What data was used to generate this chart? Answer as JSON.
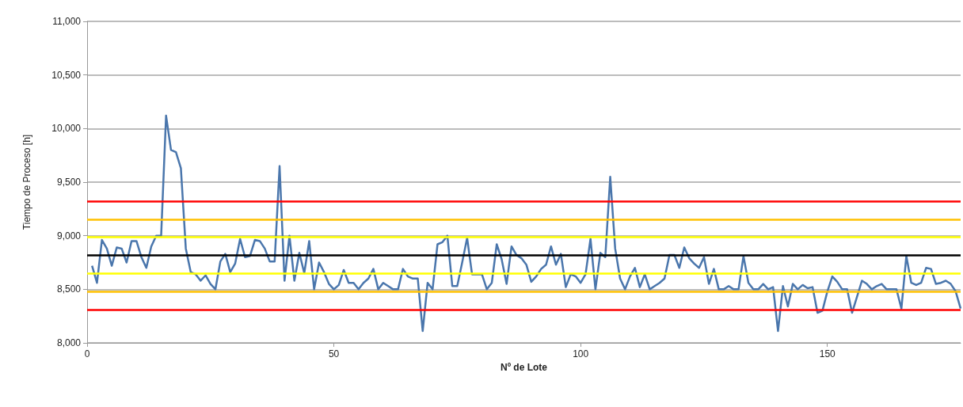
{
  "chart_data": {
    "type": "line",
    "xlabel": "Nº de Lote",
    "ylabel": "Tiempo de Proceso [h]",
    "x": [
      1,
      2,
      3,
      4,
      5,
      6,
      7,
      8,
      9,
      10,
      11,
      12,
      13,
      14,
      15,
      16,
      17,
      18,
      19,
      20,
      21,
      22,
      23,
      24,
      25,
      26,
      27,
      28,
      29,
      30,
      31,
      32,
      33,
      34,
      35,
      36,
      37,
      38,
      39,
      40,
      41,
      42,
      43,
      44,
      45,
      46,
      47,
      48,
      49,
      50,
      51,
      52,
      53,
      54,
      55,
      56,
      57,
      58,
      59,
      60,
      61,
      62,
      63,
      64,
      65,
      66,
      67,
      68,
      69,
      70,
      71,
      72,
      73,
      74,
      75,
      76,
      77,
      78,
      79,
      80,
      81,
      82,
      83,
      84,
      85,
      86,
      87,
      88,
      89,
      90,
      91,
      92,
      93,
      94,
      95,
      96,
      97,
      98,
      99,
      100,
      101,
      102,
      103,
      104,
      105,
      106,
      107,
      108,
      109,
      110,
      111,
      112,
      113,
      114,
      115,
      116,
      117,
      118,
      119,
      120,
      121,
      122,
      123,
      124,
      125,
      126,
      127,
      128,
      129,
      130,
      131,
      132,
      133,
      134,
      135,
      136,
      137,
      138,
      139,
      140,
      141,
      142,
      143,
      144,
      145,
      146,
      147,
      148,
      149,
      150,
      151,
      152,
      153,
      154,
      155,
      156,
      157,
      158,
      159,
      160,
      161,
      162,
      163,
      164,
      165,
      166,
      167,
      168,
      169,
      170,
      171,
      172,
      173,
      174,
      175,
      176,
      177
    ],
    "series": [
      {
        "color": "#4a76ac",
        "values": [
          8720,
          8560,
          8960,
          8880,
          8720,
          8890,
          8880,
          8750,
          8950,
          8950,
          8800,
          8700,
          8900,
          9000,
          9000,
          10120,
          9800,
          9780,
          9630,
          8880,
          8660,
          8640,
          8580,
          8630,
          8550,
          8500,
          8760,
          8830,
          8660,
          8740,
          8970,
          8800,
          8810,
          8960,
          8950,
          8880,
          8760,
          8760,
          9650,
          8580,
          9000,
          8580,
          8840,
          8650,
          8950,
          8500,
          8750,
          8660,
          8550,
          8500,
          8540,
          8680,
          8560,
          8560,
          8500,
          8560,
          8600,
          8690,
          8500,
          8560,
          8530,
          8500,
          8500,
          8690,
          8620,
          8600,
          8600,
          8110,
          8560,
          8500,
          8920,
          8940,
          9000,
          8530,
          8530,
          8750,
          8980,
          8640,
          8640,
          8640,
          8500,
          8560,
          8920,
          8780,
          8550,
          8900,
          8820,
          8790,
          8730,
          8570,
          8620,
          8690,
          8730,
          8900,
          8730,
          8830,
          8520,
          8640,
          8620,
          8560,
          8640,
          8970,
          8500,
          8840,
          8800,
          9550,
          8880,
          8600,
          8500,
          8620,
          8700,
          8520,
          8640,
          8500,
          8530,
          8560,
          8600,
          8820,
          8820,
          8700,
          8890,
          8790,
          8740,
          8700,
          8800,
          8550,
          8690,
          8500,
          8500,
          8530,
          8500,
          8500,
          8810,
          8560,
          8500,
          8500,
          8550,
          8500,
          8520,
          8110,
          8530,
          8340,
          8550,
          8500,
          8540,
          8510,
          8520,
          8280,
          8300,
          8480,
          8620,
          8570,
          8500,
          8500,
          8280,
          8430,
          8580,
          8550,
          8500,
          8530,
          8550,
          8500,
          8500,
          8500,
          8320,
          8810,
          8560,
          8540,
          8560,
          8700,
          8690,
          8550,
          8560,
          8580,
          8550,
          8480,
          8320
        ]
      }
    ],
    "xlim": [
      0,
      177
    ],
    "xticks": [
      0,
      50,
      100,
      150
    ],
    "ylim": [
      8000,
      11000
    ],
    "yticks": [
      {
        "value": 8000,
        "label": "8,000"
      },
      {
        "value": 8500,
        "label": "8,500"
      },
      {
        "value": 9000,
        "label": "9,000"
      },
      {
        "value": 9500,
        "label": "9,500"
      },
      {
        "value": 10000,
        "label": "10,000"
      },
      {
        "value": 10500,
        "label": "10,500"
      },
      {
        "value": 11000,
        "label": "11,000"
      }
    ],
    "grid": "y",
    "marker": "none",
    "line_style": "solid",
    "ref_lines": [
      {
        "axis": "y",
        "value": 9320,
        "color": "#ff0000"
      },
      {
        "axis": "y",
        "value": 9150,
        "color": "#ffc000"
      },
      {
        "axis": "y",
        "value": 8990,
        "color": "#ffff00"
      },
      {
        "axis": "y",
        "value": 8815,
        "color": "#000000"
      },
      {
        "axis": "y",
        "value": 8650,
        "color": "#ffff00"
      },
      {
        "axis": "y",
        "value": 8480,
        "color": "#ffc000"
      },
      {
        "axis": "y",
        "value": 8310,
        "color": "#ff0000"
      }
    ]
  }
}
